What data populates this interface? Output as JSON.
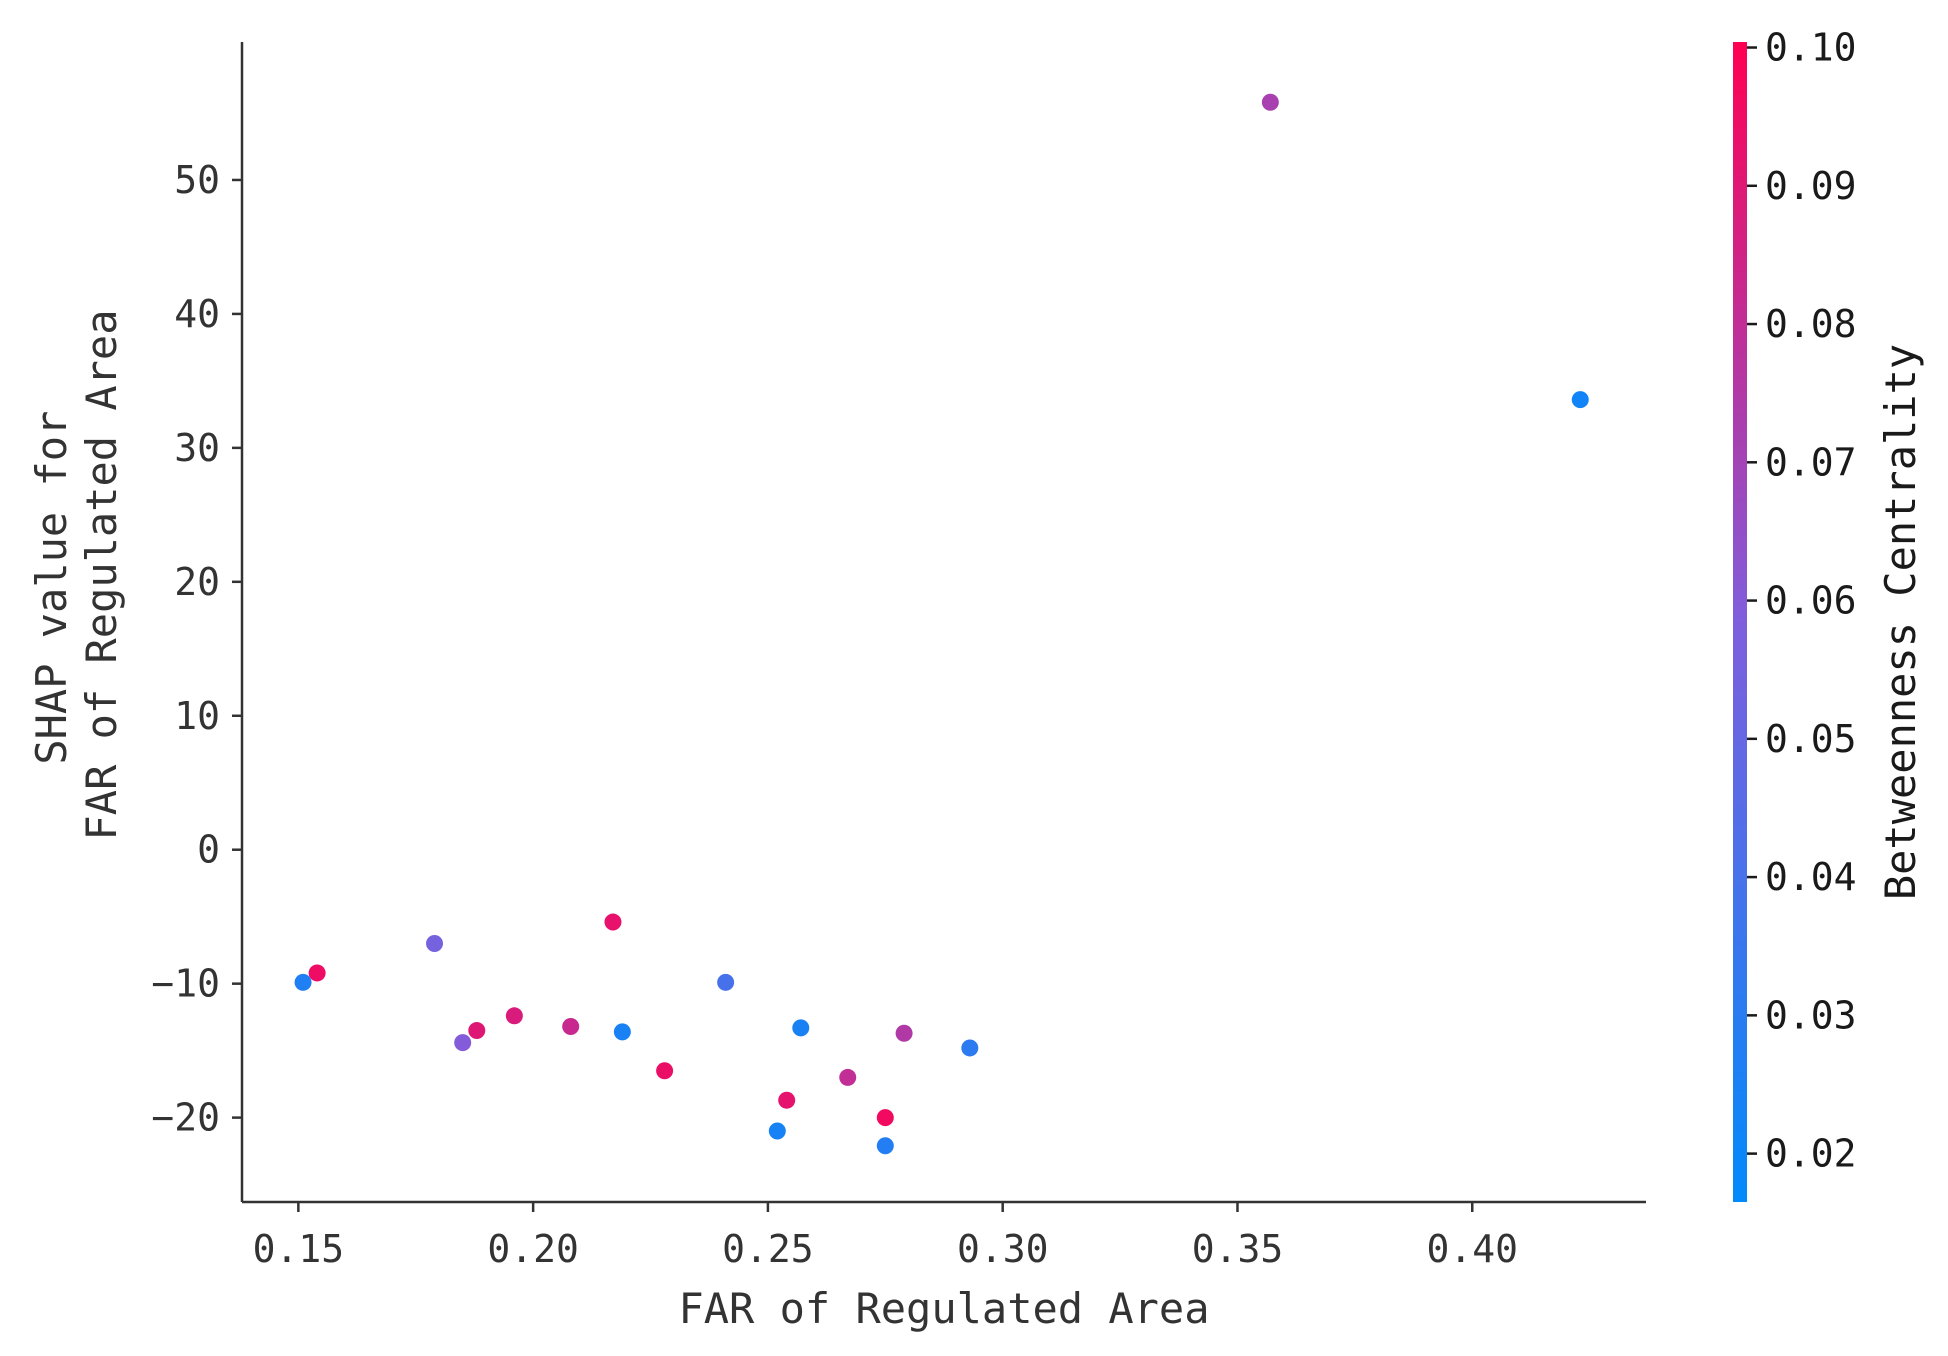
{
  "chart_data": {
    "type": "scatter",
    "xlabel": "FAR of Regulated Area",
    "ylabel_lines": [
      "SHAP value for",
      "FAR of Regulated Area"
    ],
    "xlim": [
      0.138,
      0.437
    ],
    "ylim": [
      -26.3,
      60.3
    ],
    "x_ticks": [
      0.15,
      0.2,
      0.25,
      0.3,
      0.35,
      0.4
    ],
    "x_tick_labels": [
      "0.15",
      "0.20",
      "0.25",
      "0.30",
      "0.35",
      "0.40"
    ],
    "y_ticks": [
      -20,
      -10,
      0,
      10,
      20,
      30,
      40,
      50
    ],
    "y_tick_labels": [
      "−20",
      "−10",
      "0",
      "10",
      "20",
      "30",
      "40",
      "50"
    ],
    "grid": false,
    "colorbar": {
      "label": "Betweenness Centrality",
      "range": [
        0.0165,
        0.1004
      ],
      "ticks": [
        0.02,
        0.03,
        0.04,
        0.05,
        0.06,
        0.07,
        0.08,
        0.09,
        0.1
      ],
      "tick_labels": [
        "0.02",
        "0.03",
        "0.04",
        "0.05",
        "0.06",
        "0.07",
        "0.08",
        "0.09",
        "0.10"
      ],
      "colormap": [
        "#008afb",
        "#7f5edd",
        "#ff0052"
      ]
    },
    "points": [
      {
        "x": 0.151,
        "y": -9.9,
        "c": 0.027
      },
      {
        "x": 0.154,
        "y": -9.2,
        "c": 0.095
      },
      {
        "x": 0.179,
        "y": -7.0,
        "c": 0.055
      },
      {
        "x": 0.185,
        "y": -14.4,
        "c": 0.06
      },
      {
        "x": 0.188,
        "y": -13.5,
        "c": 0.09
      },
      {
        "x": 0.196,
        "y": -12.4,
        "c": 0.088
      },
      {
        "x": 0.208,
        "y": -13.2,
        "c": 0.082
      },
      {
        "x": 0.217,
        "y": -5.4,
        "c": 0.093
      },
      {
        "x": 0.219,
        "y": -13.6,
        "c": 0.025
      },
      {
        "x": 0.228,
        "y": -16.5,
        "c": 0.094
      },
      {
        "x": 0.241,
        "y": -9.9,
        "c": 0.04
      },
      {
        "x": 0.252,
        "y": -21.0,
        "c": 0.024
      },
      {
        "x": 0.254,
        "y": -18.7,
        "c": 0.092
      },
      {
        "x": 0.257,
        "y": -13.3,
        "c": 0.025
      },
      {
        "x": 0.267,
        "y": -17.0,
        "c": 0.08
      },
      {
        "x": 0.275,
        "y": -22.1,
        "c": 0.028
      },
      {
        "x": 0.275,
        "y": -20.0,
        "c": 0.096
      },
      {
        "x": 0.279,
        "y": -13.7,
        "c": 0.075
      },
      {
        "x": 0.293,
        "y": -14.8,
        "c": 0.031
      },
      {
        "x": 0.357,
        "y": 55.8,
        "c": 0.072
      },
      {
        "x": 0.423,
        "y": 33.6,
        "c": 0.022
      }
    ]
  }
}
